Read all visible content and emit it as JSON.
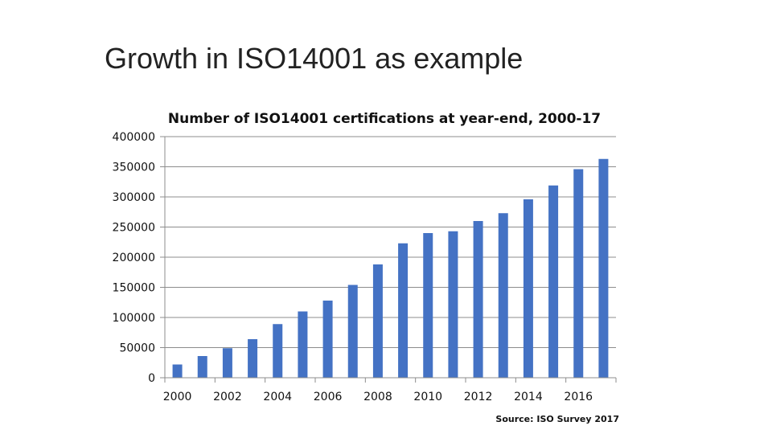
{
  "slide": {
    "title": "Growth in ISO14001 as example"
  },
  "chart_data": {
    "type": "bar",
    "title": "Number of ISO14001 certifications at year-end, 2000-17",
    "categories": [
      "2000",
      "2001",
      "2002",
      "2003",
      "2004",
      "2005",
      "2006",
      "2007",
      "2008",
      "2009",
      "2010",
      "2011",
      "2012",
      "2013",
      "2014",
      "2015",
      "2016",
      "2017"
    ],
    "x_tick_labels": [
      "2000",
      "2002",
      "2004",
      "2006",
      "2008",
      "2010",
      "2012",
      "2014",
      "2016"
    ],
    "values": [
      22000,
      36000,
      49000,
      64000,
      89000,
      110000,
      128000,
      154000,
      188000,
      223000,
      240000,
      243000,
      260000,
      273000,
      296000,
      319000,
      346000,
      363000
    ],
    "ylim": [
      0,
      400000
    ],
    "y_ticks": [
      "0",
      "50000",
      "100000",
      "150000",
      "200000",
      "250000",
      "300000",
      "350000",
      "400000"
    ],
    "bar_color": "#4472C4",
    "grid": true,
    "xlabel": "",
    "ylabel": "",
    "source": "Source: ISO Survey 2017"
  }
}
